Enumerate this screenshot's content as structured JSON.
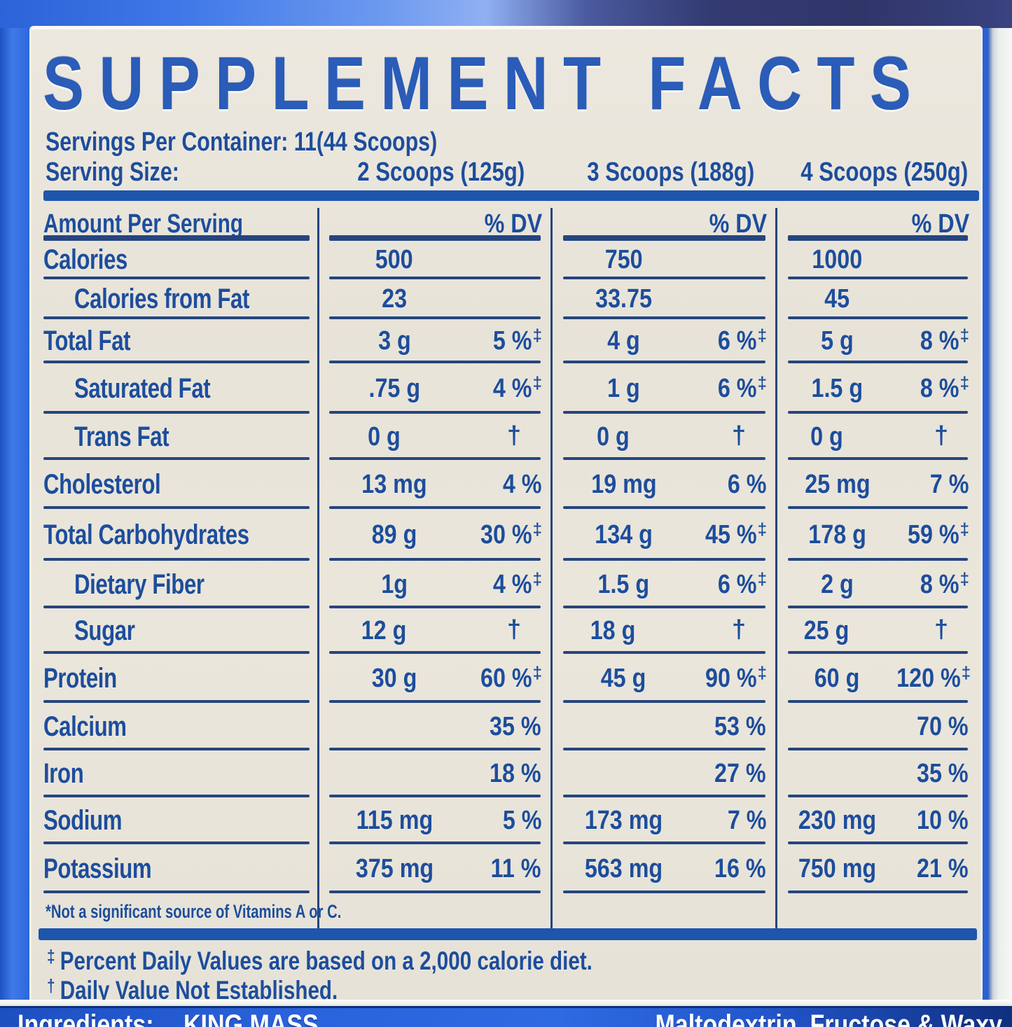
{
  "colors": {
    "bottle_blue": "#2b65d8",
    "bottle_dark": "#333b72",
    "label_cream": "#e9e5da",
    "text_navy": "#1d4d9c",
    "title_blue": "#2a5cb8",
    "rule_navy": "#25457f",
    "bar_blue": "#1e55ad",
    "band_blue": "#2257cc"
  },
  "title": "SUPPLEMENT FACTS",
  "servings_per_container": "Servings Per Container: 11(44 Scoops)",
  "serving": {
    "label": "Serving Size:",
    "sizes": [
      "2 Scoops (125g)",
      "3 Scoops (188g)",
      "4 Scoops (250g)"
    ]
  },
  "table": {
    "amount_header": "Amount Per Serving",
    "dv_header": "% DV",
    "rows": [
      {
        "name": "Calories",
        "indent": false,
        "cols": [
          {
            "amt": "500",
            "dv": "",
            "sym": ""
          },
          {
            "amt": "750",
            "dv": "",
            "sym": ""
          },
          {
            "amt": "1000",
            "dv": "",
            "sym": ""
          }
        ]
      },
      {
        "name": "Calories from Fat",
        "indent": true,
        "cols": [
          {
            "amt": "23",
            "dv": "",
            "sym": ""
          },
          {
            "amt": "33.75",
            "dv": "",
            "sym": ""
          },
          {
            "amt": "45",
            "dv": "",
            "sym": ""
          }
        ]
      },
      {
        "name": "Total Fat",
        "indent": false,
        "cols": [
          {
            "amt": "3 g",
            "dv": "5 %",
            "sym": "‡"
          },
          {
            "amt": "4 g",
            "dv": "6 %",
            "sym": "‡"
          },
          {
            "amt": "5 g",
            "dv": "8 %",
            "sym": "‡"
          }
        ]
      },
      {
        "name": "Saturated Fat",
        "indent": true,
        "cols": [
          {
            "amt": ".75 g",
            "dv": "4 %",
            "sym": "‡"
          },
          {
            "amt": "1 g",
            "dv": "6 %",
            "sym": "‡"
          },
          {
            "amt": "1.5 g",
            "dv": "8 %",
            "sym": "‡"
          }
        ]
      },
      {
        "name": "Trans Fat",
        "indent": true,
        "cols": [
          {
            "amt": "0 g",
            "dv": "",
            "sym": "†"
          },
          {
            "amt": "0 g",
            "dv": "",
            "sym": "†"
          },
          {
            "amt": "0 g",
            "dv": "",
            "sym": "†"
          }
        ]
      },
      {
        "name": "Cholesterol",
        "indent": false,
        "cols": [
          {
            "amt": "13 mg",
            "dv": "4 %",
            "sym": ""
          },
          {
            "amt": "19 mg",
            "dv": "6 %",
            "sym": ""
          },
          {
            "amt": "25 mg",
            "dv": "7 %",
            "sym": ""
          }
        ]
      },
      {
        "name": "Total Carbohydrates",
        "indent": false,
        "cols": [
          {
            "amt": "89 g",
            "dv": "30 %",
            "sym": "‡"
          },
          {
            "amt": "134 g",
            "dv": "45 %",
            "sym": "‡"
          },
          {
            "amt": "178 g",
            "dv": "59 %",
            "sym": "‡"
          }
        ]
      },
      {
        "name": "Dietary Fiber",
        "indent": true,
        "cols": [
          {
            "amt": "1g",
            "dv": "4 %",
            "sym": "‡"
          },
          {
            "amt": "1.5 g",
            "dv": "6 %",
            "sym": "‡"
          },
          {
            "amt": "2 g",
            "dv": "8 %",
            "sym": "‡"
          }
        ]
      },
      {
        "name": "Sugar",
        "indent": true,
        "cols": [
          {
            "amt": "12 g",
            "dv": "",
            "sym": "†"
          },
          {
            "amt": "18 g",
            "dv": "",
            "sym": "†"
          },
          {
            "amt": "25 g",
            "dv": "",
            "sym": "†"
          }
        ]
      },
      {
        "name": "Protein",
        "indent": false,
        "cols": [
          {
            "amt": "30 g",
            "dv": "60 %",
            "sym": "‡"
          },
          {
            "amt": "45 g",
            "dv": "90 %",
            "sym": "‡"
          },
          {
            "amt": "60 g",
            "dv": "120 %",
            "sym": "‡"
          }
        ]
      },
      {
        "name": "Calcium",
        "indent": false,
        "cols": [
          {
            "amt": "",
            "dv": "35 %",
            "sym": ""
          },
          {
            "amt": "",
            "dv": "53 %",
            "sym": ""
          },
          {
            "amt": "",
            "dv": "70 %",
            "sym": ""
          }
        ]
      },
      {
        "name": "Iron",
        "indent": false,
        "cols": [
          {
            "amt": "",
            "dv": "18 %",
            "sym": ""
          },
          {
            "amt": "",
            "dv": "27 %",
            "sym": ""
          },
          {
            "amt": "",
            "dv": "35 %",
            "sym": ""
          }
        ]
      },
      {
        "name": "Sodium",
        "indent": false,
        "cols": [
          {
            "amt": "115 mg",
            "dv": "5 %",
            "sym": ""
          },
          {
            "amt": "173 mg",
            "dv": "7 %",
            "sym": ""
          },
          {
            "amt": "230 mg",
            "dv": "10 %",
            "sym": ""
          }
        ]
      },
      {
        "name": "Potassium",
        "indent": false,
        "cols": [
          {
            "amt": "375 mg",
            "dv": "11 %",
            "sym": ""
          },
          {
            "amt": "563 mg",
            "dv": "16 %",
            "sym": ""
          },
          {
            "amt": "750 mg",
            "dv": "21 %",
            "sym": ""
          }
        ]
      }
    ]
  },
  "note": "*Not a significant source of Vitamins A or C.",
  "footnotes": [
    {
      "sym": "‡",
      "text": "Percent Daily Values are based on a 2,000 calorie diet."
    },
    {
      "sym": "†",
      "text": "Daily Value Not Established."
    }
  ],
  "ingredients_band": {
    "fragments": [
      "Ingredients:",
      "KING MASS",
      "Maltodextrin, Fructose & Waxy"
    ]
  }
}
